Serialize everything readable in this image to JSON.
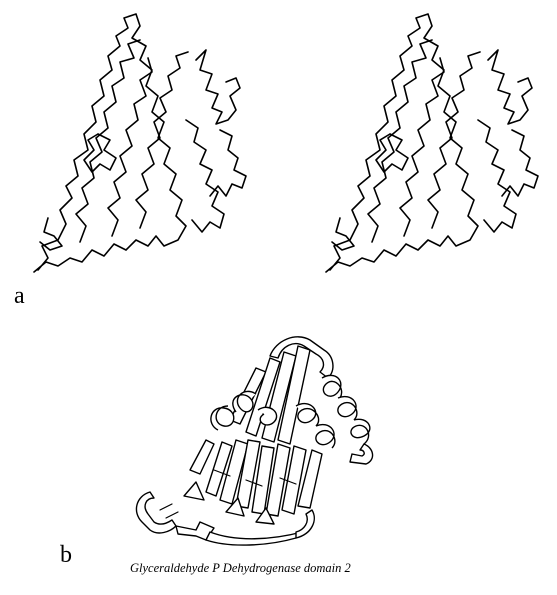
{
  "figure": {
    "label_a": "a",
    "label_b": "b",
    "caption": "Glyceraldehyde P Dehydrogenase domain 2"
  }
}
